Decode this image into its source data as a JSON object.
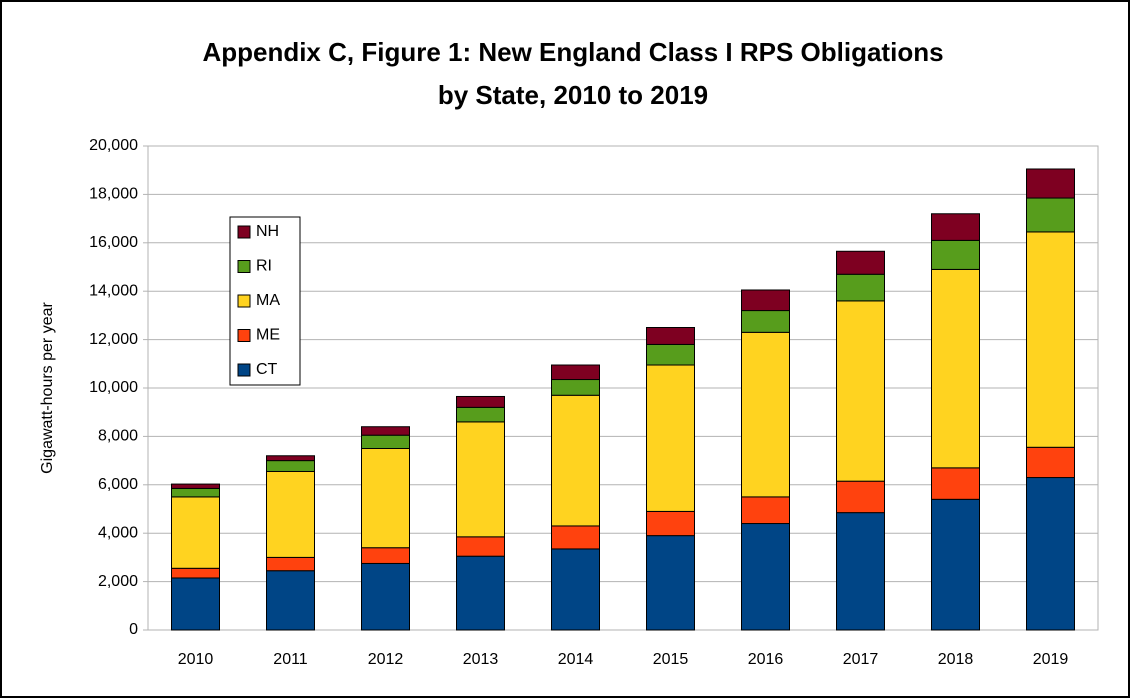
{
  "chart_data": {
    "type": "stacked_bar",
    "title": [
      "Appendix C, Figure 1: New England Class I RPS Obligations",
      "by State, 2010 to 2019"
    ],
    "y_label": "Gigawatt-hours per year",
    "categories": [
      "2010",
      "2011",
      "2012",
      "2013",
      "2014",
      "2015",
      "2016",
      "2017",
      "2018",
      "2019"
    ],
    "series": [
      {
        "name": "CT",
        "color": "#004586",
        "values": [
          2150,
          2450,
          2750,
          3050,
          3350,
          3900,
          4400,
          4850,
          5400,
          6300
        ]
      },
      {
        "name": "ME",
        "color": "#ff420e",
        "values": [
          400,
          550,
          650,
          800,
          950,
          1000,
          1100,
          1300,
          1300,
          1250
        ]
      },
      {
        "name": "MA",
        "color": "#ffd320",
        "values": [
          2950,
          3550,
          4100,
          4750,
          5400,
          6050,
          6800,
          7450,
          8200,
          8900
        ]
      },
      {
        "name": "RI",
        "color": "#579d1c",
        "values": [
          350,
          450,
          550,
          600,
          650,
          850,
          900,
          1100,
          1200,
          1400
        ]
      },
      {
        "name": "NH",
        "color": "#7e0021",
        "values": [
          180,
          200,
          350,
          450,
          600,
          700,
          850,
          950,
          1100,
          1200
        ]
      }
    ],
    "ylim": [
      0,
      20000
    ],
    "yticks": [
      0,
      {
        "value": 2000,
        "label": "2,000"
      },
      {
        "value": 4000,
        "label": "4,000"
      },
      {
        "value": 6000,
        "label": "6,000"
      },
      {
        "value": 8000,
        "label": "8,000"
      },
      {
        "value": 10000,
        "label": "10,000"
      },
      {
        "value": 12000,
        "label": "12,000"
      },
      {
        "value": 14000,
        "label": "14,000"
      },
      {
        "value": 16000,
        "label": "16,000"
      },
      {
        "value": 18000,
        "label": "18,000"
      },
      {
        "value": 20000,
        "label": "20,000"
      }
    ],
    "grid": true,
    "legend": "left"
  }
}
